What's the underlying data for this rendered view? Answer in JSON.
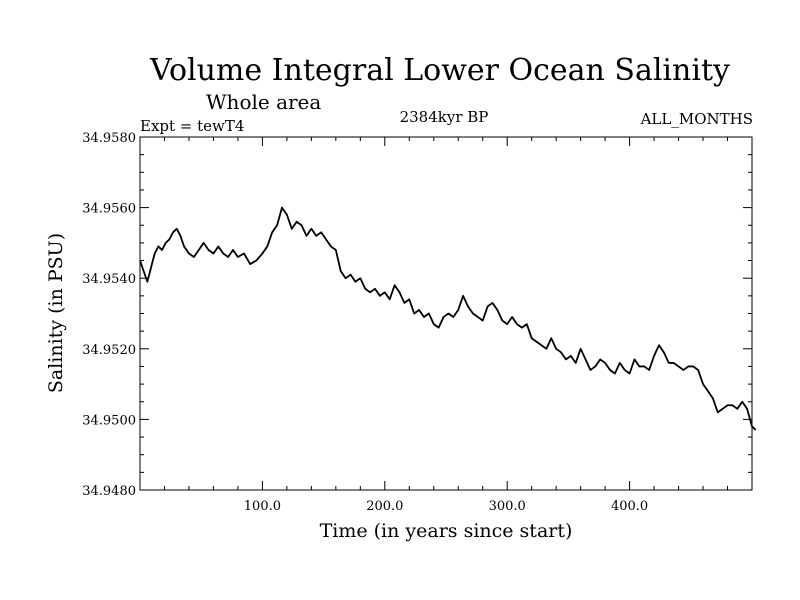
{
  "chart_data": {
    "type": "line",
    "title": "Volume Integral Lower Ocean Salinity",
    "subtitle": "Whole area",
    "expt_label": "Expt = tewT4",
    "time_label": "2384kyr BP",
    "months_label": "ALL_MONTHS",
    "xlabel": "Time (in years since start)",
    "ylabel": "Salinity (in PSU)",
    "xlim": [
      0,
      500
    ],
    "ylim": [
      34.948,
      34.958
    ],
    "x_ticks": [
      100,
      200,
      300,
      400
    ],
    "x_tick_labels": [
      "100.0",
      "200.0",
      "300.0",
      "400.0"
    ],
    "y_ticks": [
      34.948,
      34.95,
      34.952,
      34.954,
      34.956,
      34.958
    ],
    "y_tick_labels": [
      "34.9480",
      "34.9500",
      "34.9520",
      "34.9540",
      "34.9560",
      "34.9580"
    ],
    "series": [
      {
        "name": "salinity",
        "color": "#000000",
        "points": [
          [
            0,
            34.9545
          ],
          [
            3,
            34.9542
          ],
          [
            6,
            34.9539
          ],
          [
            9,
            34.9543
          ],
          [
            12,
            34.9547
          ],
          [
            15,
            34.9549
          ],
          [
            18,
            34.9548
          ],
          [
            21,
            34.955
          ],
          [
            24,
            34.9551
          ],
          [
            27,
            34.9553
          ],
          [
            30,
            34.9554
          ],
          [
            33,
            34.9552
          ],
          [
            36,
            34.9549
          ],
          [
            40,
            34.9547
          ],
          [
            44,
            34.9546
          ],
          [
            48,
            34.9548
          ],
          [
            52,
            34.955
          ],
          [
            56,
            34.9548
          ],
          [
            60,
            34.9547
          ],
          [
            64,
            34.9549
          ],
          [
            68,
            34.9547
          ],
          [
            72,
            34.9546
          ],
          [
            76,
            34.9548
          ],
          [
            80,
            34.9546
          ],
          [
            85,
            34.9547
          ],
          [
            90,
            34.9544
          ],
          [
            95,
            34.9545
          ],
          [
            100,
            34.9547
          ],
          [
            104,
            34.9549
          ],
          [
            108,
            34.9553
          ],
          [
            112,
            34.9555
          ],
          [
            116,
            34.956
          ],
          [
            120,
            34.9558
          ],
          [
            124,
            34.9554
          ],
          [
            128,
            34.9556
          ],
          [
            132,
            34.9555
          ],
          [
            136,
            34.9552
          ],
          [
            140,
            34.9554
          ],
          [
            144,
            34.9552
          ],
          [
            148,
            34.9553
          ],
          [
            152,
            34.9551
          ],
          [
            156,
            34.9549
          ],
          [
            160,
            34.9548
          ],
          [
            164,
            34.9542
          ],
          [
            168,
            34.954
          ],
          [
            172,
            34.9541
          ],
          [
            176,
            34.9539
          ],
          [
            180,
            34.954
          ],
          [
            184,
            34.9537
          ],
          [
            188,
            34.9536
          ],
          [
            192,
            34.9537
          ],
          [
            196,
            34.9535
          ],
          [
            200,
            34.9536
          ],
          [
            204,
            34.9534
          ],
          [
            208,
            34.9538
          ],
          [
            212,
            34.9536
          ],
          [
            216,
            34.9533
          ],
          [
            220,
            34.9534
          ],
          [
            224,
            34.953
          ],
          [
            228,
            34.9531
          ],
          [
            232,
            34.9529
          ],
          [
            236,
            34.953
          ],
          [
            240,
            34.9527
          ],
          [
            244,
            34.9526
          ],
          [
            248,
            34.9529
          ],
          [
            252,
            34.953
          ],
          [
            256,
            34.9529
          ],
          [
            260,
            34.9531
          ],
          [
            264,
            34.9535
          ],
          [
            268,
            34.9532
          ],
          [
            272,
            34.953
          ],
          [
            276,
            34.9529
          ],
          [
            280,
            34.9528
          ],
          [
            284,
            34.9532
          ],
          [
            288,
            34.9533
          ],
          [
            292,
            34.9531
          ],
          [
            296,
            34.9528
          ],
          [
            300,
            34.9527
          ],
          [
            304,
            34.9529
          ],
          [
            308,
            34.9527
          ],
          [
            312,
            34.9526
          ],
          [
            316,
            34.9527
          ],
          [
            320,
            34.9523
          ],
          [
            324,
            34.9522
          ],
          [
            328,
            34.9521
          ],
          [
            332,
            34.952
          ],
          [
            336,
            34.9523
          ],
          [
            340,
            34.952
          ],
          [
            344,
            34.9519
          ],
          [
            348,
            34.9517
          ],
          [
            352,
            34.9518
          ],
          [
            356,
            34.9516
          ],
          [
            360,
            34.952
          ],
          [
            364,
            34.9517
          ],
          [
            368,
            34.9514
          ],
          [
            372,
            34.9515
          ],
          [
            376,
            34.9517
          ],
          [
            380,
            34.9516
          ],
          [
            384,
            34.9514
          ],
          [
            388,
            34.9513
          ],
          [
            392,
            34.9516
          ],
          [
            396,
            34.9514
          ],
          [
            400,
            34.9513
          ],
          [
            404,
            34.9517
          ],
          [
            408,
            34.9515
          ],
          [
            412,
            34.9515
          ],
          [
            416,
            34.9514
          ],
          [
            420,
            34.9518
          ],
          [
            424,
            34.9521
          ],
          [
            428,
            34.9519
          ],
          [
            432,
            34.9516
          ],
          [
            436,
            34.9516
          ],
          [
            440,
            34.9515
          ],
          [
            444,
            34.9514
          ],
          [
            448,
            34.9515
          ],
          [
            452,
            34.9515
          ],
          [
            456,
            34.9514
          ],
          [
            460,
            34.951
          ],
          [
            464,
            34.9508
          ],
          [
            468,
            34.9506
          ],
          [
            472,
            34.9502
          ],
          [
            476,
            34.9503
          ],
          [
            480,
            34.9504
          ],
          [
            484,
            34.9504
          ],
          [
            488,
            34.9503
          ],
          [
            492,
            34.9505
          ],
          [
            496,
            34.9503
          ],
          [
            500,
            34.9498
          ],
          [
            503,
            34.9497
          ]
        ]
      }
    ]
  }
}
